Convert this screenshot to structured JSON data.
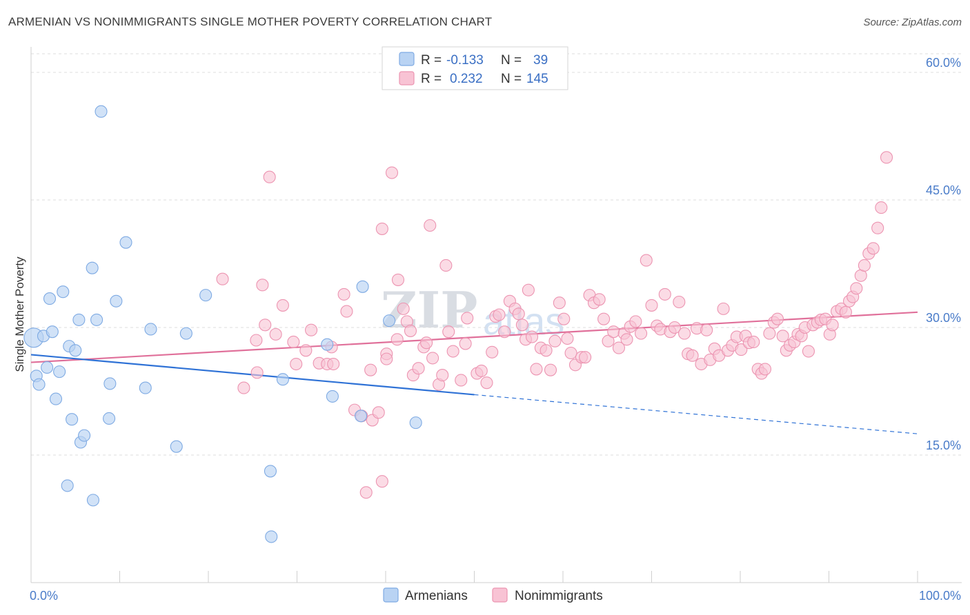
{
  "header": {
    "title": "ARMENIAN VS NONIMMIGRANTS SINGLE MOTHER POVERTY CORRELATION CHART",
    "source": "Source: ZipAtlas.com"
  },
  "watermark": {
    "part1": "ZIP",
    "part2": "atlas"
  },
  "colors": {
    "armenians_fill": "#b9d3f3",
    "armenians_stroke": "#7eaae3",
    "armenians_line": "#2f72d6",
    "nonimmigrants_fill": "#f8c3d4",
    "nonimmigrants_stroke": "#ec94b1",
    "nonimmigrants_line": "#e0709a",
    "grid": "#dcdcdc",
    "tick_label": "#4a7cc9"
  },
  "legend": {
    "rows": [
      {
        "r_label": "R = ",
        "r_value": "-0.133",
        "n_label": "N = ",
        "n_value": "39"
      },
      {
        "r_label": "R = ",
        "r_value": "0.232",
        "n_label": "N = ",
        "n_value": "145"
      }
    ],
    "series_names": [
      "Armenians",
      "Nonimmigrants"
    ]
  },
  "chart_data": {
    "type": "scatter",
    "title": "ARMENIAN VS NONIMMIGRANTS SINGLE MOTHER POVERTY CORRELATION CHART",
    "xlabel": "",
    "ylabel": "Single Mother Poverty",
    "xlim": [
      0,
      100
    ],
    "ylim": [
      0,
      63
    ],
    "x_tick_labels": [
      "0.0%",
      "100.0%"
    ],
    "y_ticks": [
      15,
      30,
      45,
      60
    ],
    "y_tick_labels": [
      "15.0%",
      "30.0%",
      "45.0%",
      "60.0%"
    ],
    "grid": true,
    "legend_position": "top-center",
    "series": [
      {
        "name": "Armenians",
        "r": -0.133,
        "n": 39,
        "trend": {
          "x0": 0,
          "y0": 26.8,
          "x1": 50,
          "y1": 22.1,
          "dashed_to_x": 100,
          "dashed_to_y": 17.5
        },
        "points": [
          [
            0.3,
            28.8
          ],
          [
            0.6,
            24.3
          ],
          [
            0.9,
            23.3
          ],
          [
            1.4,
            29.0
          ],
          [
            1.8,
            25.3
          ],
          [
            2.1,
            33.4
          ],
          [
            2.4,
            29.5
          ],
          [
            2.8,
            21.6
          ],
          [
            3.2,
            24.8
          ],
          [
            3.6,
            34.2
          ],
          [
            4.1,
            11.4
          ],
          [
            4.3,
            27.8
          ],
          [
            4.6,
            19.2
          ],
          [
            5.0,
            27.3
          ],
          [
            5.4,
            30.9
          ],
          [
            5.6,
            16.5
          ],
          [
            6.0,
            17.3
          ],
          [
            7.0,
            9.7
          ],
          [
            6.9,
            37.0
          ],
          [
            7.4,
            30.9
          ],
          [
            7.9,
            55.4
          ],
          [
            8.8,
            19.3
          ],
          [
            8.9,
            23.4
          ],
          [
            9.6,
            33.1
          ],
          [
            10.7,
            40.0
          ],
          [
            12.9,
            22.9
          ],
          [
            13.5,
            29.8
          ],
          [
            16.4,
            16.0
          ],
          [
            17.5,
            29.3
          ],
          [
            19.7,
            33.8
          ],
          [
            27.0,
            13.1
          ],
          [
            27.1,
            5.4
          ],
          [
            28.4,
            23.9
          ],
          [
            33.4,
            28.0
          ],
          [
            34.0,
            21.9
          ],
          [
            37.2,
            19.6
          ],
          [
            37.4,
            34.8
          ],
          [
            40.4,
            30.8
          ],
          [
            43.4,
            18.8
          ]
        ]
      },
      {
        "name": "Nonimmigrants",
        "r": 0.232,
        "n": 145,
        "trend": {
          "x0": 0,
          "y0": 25.9,
          "x1": 100,
          "y1": 31.8
        },
        "points": [
          [
            21.6,
            35.7
          ],
          [
            24.0,
            22.9
          ],
          [
            25.5,
            24.7
          ],
          [
            25.4,
            28.5
          ],
          [
            26.1,
            35.0
          ],
          [
            26.4,
            30.3
          ],
          [
            26.9,
            47.7
          ],
          [
            27.6,
            29.2
          ],
          [
            28.4,
            32.6
          ],
          [
            29.6,
            28.3
          ],
          [
            29.9,
            25.7
          ],
          [
            31.0,
            27.3
          ],
          [
            31.6,
            29.7
          ],
          [
            32.5,
            25.8
          ],
          [
            33.4,
            25.7
          ],
          [
            33.9,
            27.7
          ],
          [
            34.1,
            25.7
          ],
          [
            35.3,
            33.9
          ],
          [
            35.6,
            31.9
          ],
          [
            36.5,
            20.3
          ],
          [
            37.3,
            19.6
          ],
          [
            38.3,
            25.0
          ],
          [
            38.5,
            19.1
          ],
          [
            39.2,
            20.0
          ],
          [
            39.6,
            11.9
          ],
          [
            37.8,
            10.6
          ],
          [
            39.6,
            41.6
          ],
          [
            40.1,
            26.9
          ],
          [
            40.7,
            48.2
          ],
          [
            41.3,
            28.6
          ],
          [
            41.4,
            35.6
          ],
          [
            42.0,
            32.2
          ],
          [
            42.4,
            30.7
          ],
          [
            42.8,
            29.6
          ],
          [
            43.1,
            24.4
          ],
          [
            43.7,
            25.2
          ],
          [
            44.3,
            27.7
          ],
          [
            44.6,
            28.2
          ],
          [
            45.0,
            42.0
          ],
          [
            45.3,
            26.4
          ],
          [
            46.0,
            23.3
          ],
          [
            46.4,
            24.4
          ],
          [
            46.8,
            37.3
          ],
          [
            47.1,
            29.5
          ],
          [
            47.6,
            27.2
          ],
          [
            48.5,
            23.8
          ],
          [
            49.0,
            28.1
          ],
          [
            49.2,
            31.1
          ],
          [
            50.3,
            24.6
          ],
          [
            50.8,
            24.9
          ],
          [
            51.4,
            23.5
          ],
          [
            52.0,
            27.1
          ],
          [
            52.4,
            31.3
          ],
          [
            52.8,
            31.5
          ],
          [
            53.4,
            29.5
          ],
          [
            54.0,
            33.1
          ],
          [
            54.6,
            32.2
          ],
          [
            55.0,
            31.6
          ],
          [
            55.4,
            30.3
          ],
          [
            55.8,
            28.6
          ],
          [
            56.1,
            34.4
          ],
          [
            56.5,
            28.9
          ],
          [
            57.0,
            25.1
          ],
          [
            57.5,
            27.6
          ],
          [
            58.1,
            27.3
          ],
          [
            58.6,
            25.0
          ],
          [
            59.1,
            28.4
          ],
          [
            59.6,
            32.9
          ],
          [
            60.1,
            31.0
          ],
          [
            60.5,
            28.7
          ],
          [
            60.9,
            27.0
          ],
          [
            61.4,
            25.6
          ],
          [
            62.1,
            26.5
          ],
          [
            62.5,
            26.5
          ],
          [
            63.0,
            33.8
          ],
          [
            63.5,
            32.9
          ],
          [
            64.1,
            33.3
          ],
          [
            64.6,
            31.0
          ],
          [
            65.1,
            28.4
          ],
          [
            65.7,
            29.5
          ],
          [
            66.3,
            27.6
          ],
          [
            66.9,
            29.3
          ],
          [
            67.2,
            28.6
          ],
          [
            67.6,
            30.1
          ],
          [
            68.2,
            30.7
          ],
          [
            68.8,
            29.3
          ],
          [
            69.4,
            37.9
          ],
          [
            70.0,
            32.6
          ],
          [
            70.6,
            30.2
          ],
          [
            71.0,
            29.8
          ],
          [
            71.5,
            33.9
          ],
          [
            72.1,
            29.5
          ],
          [
            72.6,
            30.0
          ],
          [
            73.1,
            33.0
          ],
          [
            73.7,
            29.3
          ],
          [
            74.1,
            26.9
          ],
          [
            74.6,
            26.7
          ],
          [
            75.1,
            29.9
          ],
          [
            75.6,
            25.7
          ],
          [
            76.2,
            29.7
          ],
          [
            76.6,
            26.2
          ],
          [
            77.1,
            27.5
          ],
          [
            77.6,
            26.7
          ],
          [
            78.1,
            32.2
          ],
          [
            78.6,
            27.3
          ],
          [
            79.1,
            27.9
          ],
          [
            79.6,
            28.9
          ],
          [
            80.1,
            27.4
          ],
          [
            80.6,
            29.0
          ],
          [
            81.0,
            28.2
          ],
          [
            81.5,
            28.3
          ],
          [
            82.0,
            25.1
          ],
          [
            82.4,
            24.6
          ],
          [
            82.8,
            25.1
          ],
          [
            83.3,
            29.3
          ],
          [
            83.8,
            30.6
          ],
          [
            84.2,
            31.0
          ],
          [
            84.8,
            29.0
          ],
          [
            85.2,
            27.3
          ],
          [
            85.6,
            27.9
          ],
          [
            86.1,
            28.3
          ],
          [
            86.5,
            29.2
          ],
          [
            86.9,
            29.0
          ],
          [
            87.3,
            30.0
          ],
          [
            87.7,
            27.2
          ],
          [
            88.2,
            30.3
          ],
          [
            88.7,
            30.6
          ],
          [
            89.1,
            30.9
          ],
          [
            89.6,
            31.0
          ],
          [
            90.1,
            29.2
          ],
          [
            90.4,
            30.3
          ],
          [
            90.9,
            31.9
          ],
          [
            91.4,
            32.2
          ],
          [
            91.9,
            31.8
          ],
          [
            92.3,
            33.1
          ],
          [
            92.7,
            33.6
          ],
          [
            93.1,
            34.6
          ],
          [
            93.6,
            36.1
          ],
          [
            94.0,
            37.3
          ],
          [
            94.5,
            38.7
          ],
          [
            95.0,
            39.3
          ],
          [
            95.5,
            41.7
          ],
          [
            95.9,
            44.1
          ],
          [
            96.5,
            50.0
          ],
          [
            40.1,
            26.3
          ]
        ]
      }
    ]
  }
}
